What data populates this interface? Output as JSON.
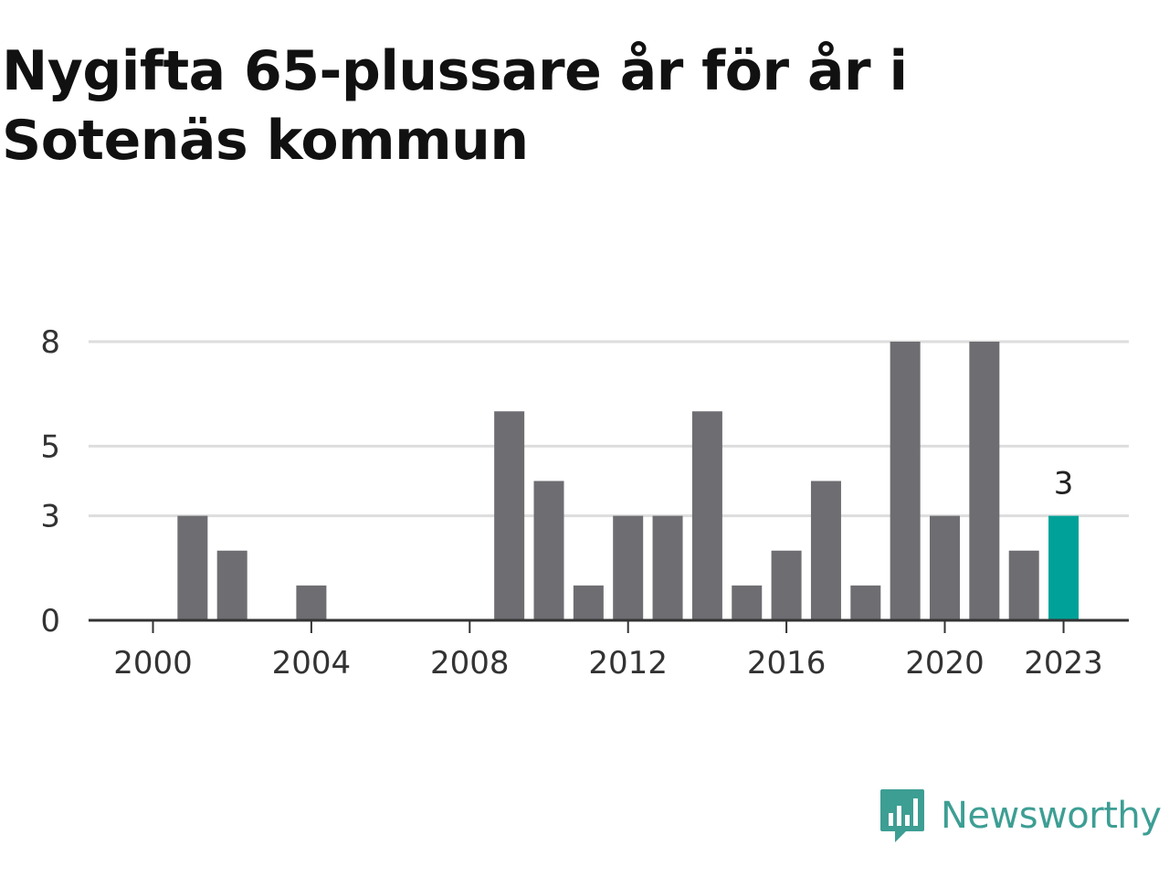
{
  "title": "Nygifta 65-plussare år för år i Sotenäs kommun",
  "brand": {
    "name": "Newsworthy",
    "icon": "newsworthy-logo-icon",
    "color": "#3d9e94"
  },
  "colors": {
    "bar": "#6e6d72",
    "highlight": "#00a198",
    "grid": "#dddddd",
    "axis": "#333333"
  },
  "chart_data": {
    "type": "bar",
    "categories": [
      "2000",
      "2001",
      "2002",
      "2003",
      "2004",
      "2005",
      "2006",
      "2007",
      "2008",
      "2009",
      "2010",
      "2011",
      "2012",
      "2013",
      "2014",
      "2015",
      "2016",
      "2017",
      "2018",
      "2019",
      "2020",
      "2021",
      "2022",
      "2023"
    ],
    "values": [
      0,
      3,
      2,
      0,
      1,
      0,
      0,
      0,
      0,
      6,
      4,
      1,
      3,
      3,
      6,
      1,
      2,
      4,
      1,
      8,
      3,
      8,
      2,
      3
    ],
    "x_tick_labels": [
      "2000",
      "2004",
      "2008",
      "2012",
      "2016",
      "2020",
      "2023"
    ],
    "y_tick_labels": [
      "0",
      "3",
      "5",
      "8"
    ],
    "highlight": {
      "category": "2023",
      "label": "3"
    },
    "title": "Nygifta 65-plussare år för år i Sotenäs kommun",
    "xlabel": "",
    "ylabel": "",
    "ylim": [
      0,
      8
    ],
    "grid": true,
    "legend": "none"
  }
}
